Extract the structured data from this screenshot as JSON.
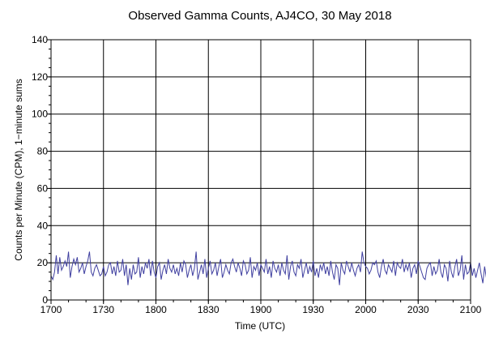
{
  "chart_data": {
    "type": "line",
    "title": "Observed Gamma Counts, AJ4CO, 30 May 2018",
    "xlabel": "Time (UTC)",
    "ylabel": "Counts per Minute (CPM), 1−minute sums",
    "x_tick_labels": [
      "1700",
      "1730",
      "1800",
      "1830",
      "1900",
      "1930",
      "2000",
      "2030",
      "2100"
    ],
    "y_tick_labels": [
      "0",
      "20",
      "40",
      "60",
      "80",
      "100",
      "120",
      "140"
    ],
    "xlim": [
      "17:00",
      "21:00"
    ],
    "ylim": [
      0,
      140
    ],
    "grid": true,
    "line_color": "#4040a0",
    "x_start": "17:00",
    "x_step_minutes": 1,
    "values": [
      13,
      11,
      15,
      24,
      14,
      23,
      16,
      18,
      21,
      18,
      26,
      12,
      18,
      22,
      19,
      23,
      15,
      17,
      20,
      14,
      18,
      21,
      26,
      15,
      13,
      17,
      19,
      16,
      13,
      14,
      18,
      13,
      15,
      19,
      20,
      14,
      18,
      13,
      21,
      15,
      16,
      22,
      13,
      19,
      8,
      17,
      11,
      19,
      14,
      15,
      23,
      12,
      18,
      14,
      20,
      17,
      22,
      13,
      21,
      15,
      12,
      18,
      20,
      11,
      16,
      19,
      14,
      22,
      17,
      15,
      19,
      14,
      17,
      13,
      20,
      15,
      21,
      19,
      12,
      16,
      19,
      13,
      17,
      26,
      11,
      15,
      19,
      14,
      22,
      12,
      17,
      21,
      14,
      16,
      20,
      13,
      18,
      22,
      12,
      15,
      19,
      16,
      14,
      20,
      22,
      18,
      15,
      20,
      17,
      13,
      21,
      19,
      14,
      16,
      23,
      12,
      18,
      16,
      20,
      13,
      19,
      17,
      15,
      22,
      14,
      18,
      12,
      21,
      17,
      15,
      19,
      13,
      20,
      16,
      14,
      24,
      11,
      18,
      21,
      15,
      13,
      19,
      17,
      22,
      12,
      16,
      20,
      14,
      18,
      15,
      21,
      13,
      17,
      12,
      19,
      16,
      20,
      14,
      18,
      13,
      21,
      15,
      11,
      19,
      17,
      8,
      20,
      16,
      14,
      21,
      18,
      15,
      20,
      16,
      13,
      17,
      19,
      15,
      26,
      20,
      18,
      17,
      14,
      16,
      20,
      19,
      21,
      15,
      12,
      18,
      22,
      16,
      14,
      19,
      17,
      15,
      21,
      13,
      20,
      18,
      17,
      22,
      15,
      19,
      16,
      20,
      12,
      17,
      19,
      14,
      21,
      18,
      15,
      12,
      11,
      17,
      19,
      20,
      13,
      18,
      14,
      16,
      22,
      15,
      12,
      19,
      17,
      10,
      21,
      15,
      12,
      18,
      22,
      13,
      16,
      24,
      11,
      19,
      14,
      15,
      20,
      13,
      17,
      12,
      16,
      20,
      14,
      9,
      18,
      12,
      22,
      13,
      19,
      15,
      11,
      21,
      17,
      13
    ]
  }
}
